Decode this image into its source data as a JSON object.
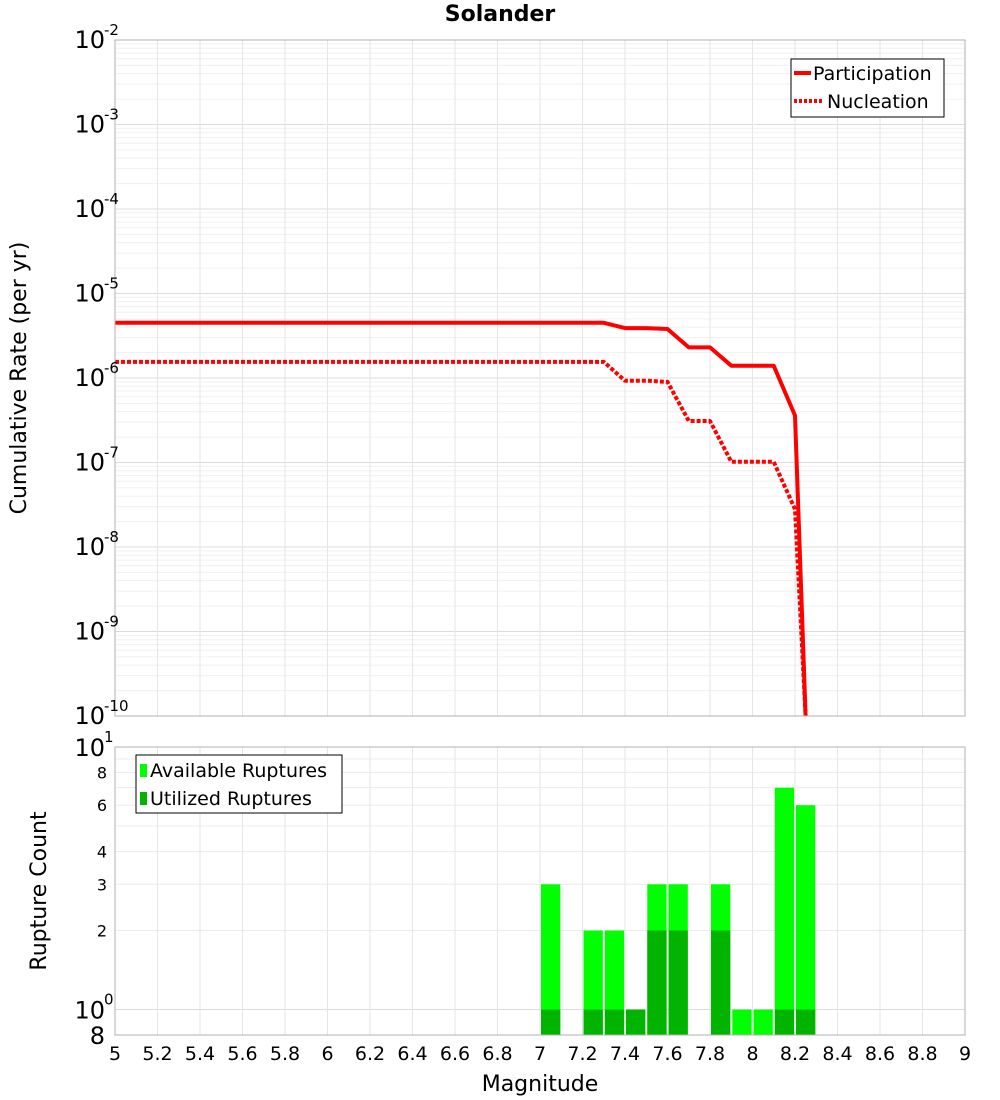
{
  "title": "Solander",
  "chart_data": [
    {
      "type": "line",
      "ylabel": "Cumulative Rate (per yr)",
      "xlim": [
        5,
        9
      ],
      "ylog": true,
      "ylim": [
        1e-10,
        0.01
      ],
      "y_ticks": [
        {
          "base": "10",
          "exp": "-2",
          "value": 0.01
        },
        {
          "base": "10",
          "exp": "-3",
          "value": 0.001
        },
        {
          "base": "10",
          "exp": "-4",
          "value": 0.0001
        },
        {
          "base": "10",
          "exp": "-5",
          "value": 1e-05
        },
        {
          "base": "10",
          "exp": "-6",
          "value": 1e-06
        },
        {
          "base": "10",
          "exp": "-7",
          "value": 1e-07
        },
        {
          "base": "10",
          "exp": "-8",
          "value": 1e-08
        },
        {
          "base": "10",
          "exp": "-9",
          "value": 1e-09
        },
        {
          "base": "10",
          "exp": "-10",
          "value": 1e-10
        }
      ],
      "grid": true,
      "legend_position": "top-right",
      "series": [
        {
          "name": "Participation",
          "color": "#ff0000",
          "style": "solid",
          "x": [
            5.0,
            7.3,
            7.4,
            7.5,
            7.6,
            7.7,
            7.8,
            7.9,
            8.0,
            8.1,
            8.2,
            8.25
          ],
          "y": [
            4.5e-06,
            4.5e-06,
            3.9e-06,
            3.9e-06,
            3.8e-06,
            2.3e-06,
            2.3e-06,
            1.4e-06,
            1.4e-06,
            1.4e-06,
            3.6e-07,
            1e-10
          ]
        },
        {
          "name": "Nucleation",
          "color": "#ff0000",
          "style": "dotted",
          "x": [
            5.0,
            7.3,
            7.4,
            7.5,
            7.6,
            7.7,
            7.8,
            7.9,
            8.0,
            8.1,
            8.2,
            8.25
          ],
          "y": [
            1.55e-06,
            1.55e-06,
            9.3e-07,
            9.3e-07,
            9e-07,
            3.1e-07,
            3.1e-07,
            1.02e-07,
            1.02e-07,
            1.02e-07,
            2.8e-08,
            1e-10
          ]
        }
      ]
    },
    {
      "type": "bar",
      "xlabel": "Magnitude",
      "ylabel": "Rupture Count",
      "xlim": [
        5,
        9
      ],
      "x_ticks": [
        "5",
        "5.2",
        "5.4",
        "5.6",
        "5.8",
        "6",
        "6.2",
        "6.4",
        "6.6",
        "6.8",
        "7",
        "7.2",
        "7.4",
        "7.6",
        "7.8",
        "8",
        "8.2",
        "8.4",
        "8.6",
        "8.8",
        "9"
      ],
      "ylog": true,
      "ylim": [
        0.8,
        10
      ],
      "y_ticks_major": [
        {
          "base": "10",
          "exp": "1",
          "value": 10
        },
        {
          "base": "10",
          "exp": "0",
          "value": 1
        },
        {
          "base": "8",
          "exp": "",
          "value": 0.8
        }
      ],
      "y_ticks_minor": [
        {
          "label": "8",
          "value": 8
        },
        {
          "label": "6",
          "value": 6
        },
        {
          "label": "4",
          "value": 4
        },
        {
          "label": "3",
          "value": 3
        },
        {
          "label": "2",
          "value": 2
        }
      ],
      "grid": true,
      "legend_position": "top-left",
      "series": [
        {
          "name": "Available Ruptures",
          "color": "#00ff00",
          "x": [
            7.05,
            7.25,
            7.35,
            7.45,
            7.55,
            7.65,
            7.85,
            7.95,
            8.05,
            8.15,
            8.25
          ],
          "values": [
            3,
            2,
            2,
            1,
            3,
            3,
            3,
            1,
            1,
            7,
            6
          ]
        },
        {
          "name": "Utilized Ruptures",
          "color": "#00b400",
          "x": [
            7.05,
            7.25,
            7.35,
            7.45,
            7.55,
            7.65,
            7.85,
            7.95,
            8.05,
            8.15,
            8.25
          ],
          "values": [
            1,
            1,
            1,
            1,
            2,
            2,
            2,
            0,
            0,
            1,
            1
          ]
        }
      ]
    }
  ]
}
